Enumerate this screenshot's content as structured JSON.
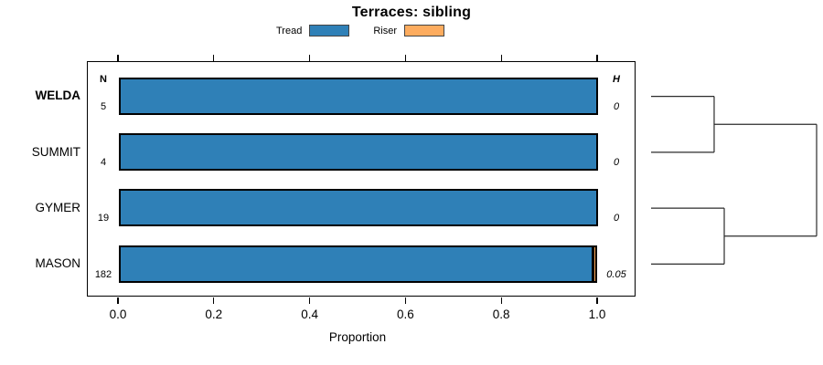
{
  "chart_data": {
    "type": "bar",
    "orientation": "horizontal",
    "stacked": true,
    "title": "Terraces: sibling",
    "xlabel": "Proportion",
    "xlim": [
      0,
      1
    ],
    "xticks": [
      0.0,
      0.2,
      0.4,
      0.6,
      0.8,
      1.0
    ],
    "xtick_labels": [
      "0.0",
      "0.2",
      "0.4",
      "0.6",
      "0.8",
      "1.0"
    ],
    "grid": false,
    "legend_position": "top-center",
    "categories": [
      "WELDA",
      "SUMMIT",
      "GYMER",
      "MASON"
    ],
    "highlighted_category": "WELDA",
    "series": [
      {
        "name": "Tread",
        "color": "#2F80B7",
        "values": [
          1.0,
          1.0,
          1.0,
          0.99
        ]
      },
      {
        "name": "Riser",
        "color": "#FDAC5F",
        "values": [
          0.0,
          0.0,
          0.0,
          0.01
        ]
      }
    ],
    "annotations": {
      "n_header": "N",
      "n_values": [
        "5",
        "4",
        "19",
        "182"
      ],
      "h_header": "H",
      "h_values": [
        "0",
        "0",
        "0",
        "0.05"
      ]
    },
    "dendrogram": {
      "note": "hierarchical clustering of rows, root at right",
      "merges": [
        {
          "children": [
            0,
            1
          ],
          "height": 0.381
        },
        {
          "children": [
            2,
            3
          ],
          "height": 0.442
        },
        {
          "children": [
            "m0",
            "m1"
          ],
          "height": 1.0
        }
      ]
    }
  },
  "colors": {
    "bar_border": "#000000",
    "dendrogram_line": "#2b2b2b",
    "background": "#ffffff"
  }
}
